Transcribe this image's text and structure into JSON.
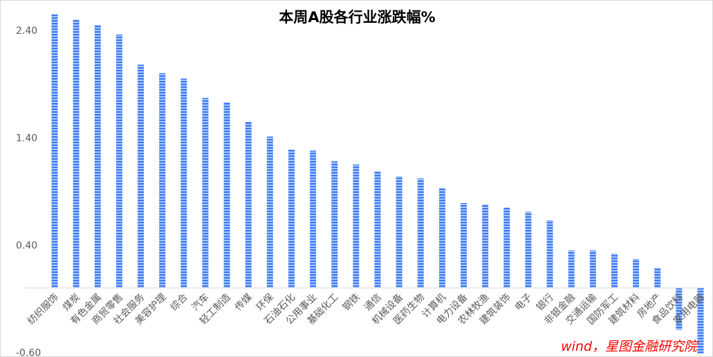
{
  "chart_data": {
    "type": "bar",
    "title": "本周A股各行业涨跌幅%",
    "xlabel": "",
    "ylabel": "",
    "ylim": [
      -0.6,
      2.6
    ],
    "yticks": [
      2.4,
      1.4,
      0.4,
      -0.6
    ],
    "ytick_labels": [
      "2.40",
      "1.40",
      "0.40",
      "-0.60"
    ],
    "grid": false,
    "legend": "none",
    "bar_color": "#3d7bf7",
    "bar_pattern": "horizontal-stripes",
    "categories": [
      "纺织服饰",
      "煤炭",
      "有色金属",
      "商贸零售",
      "社会服务",
      "美容护理",
      "综合",
      "汽车",
      "轻工制造",
      "传媒",
      "环保",
      "石油石化",
      "公用事业",
      "基础化工",
      "钢铁",
      "通信",
      "机械设备",
      "医药生物",
      "计算机",
      "电力设备",
      "农林牧渔",
      "建筑装饰",
      "电子",
      "银行",
      "非银金融",
      "交通运输",
      "国防军工",
      "建筑材料",
      "房地产",
      "食品饮料",
      "家用电器"
    ],
    "values": [
      2.55,
      2.5,
      2.45,
      2.36,
      2.08,
      2.0,
      1.95,
      1.77,
      1.73,
      1.55,
      1.41,
      1.29,
      1.28,
      1.18,
      1.15,
      1.09,
      1.04,
      1.02,
      0.93,
      0.79,
      0.78,
      0.75,
      0.71,
      0.63,
      0.35,
      0.35,
      0.32,
      0.27,
      0.19,
      -0.39,
      -0.61
    ]
  },
  "source_note": "wind，星图金融研究院"
}
